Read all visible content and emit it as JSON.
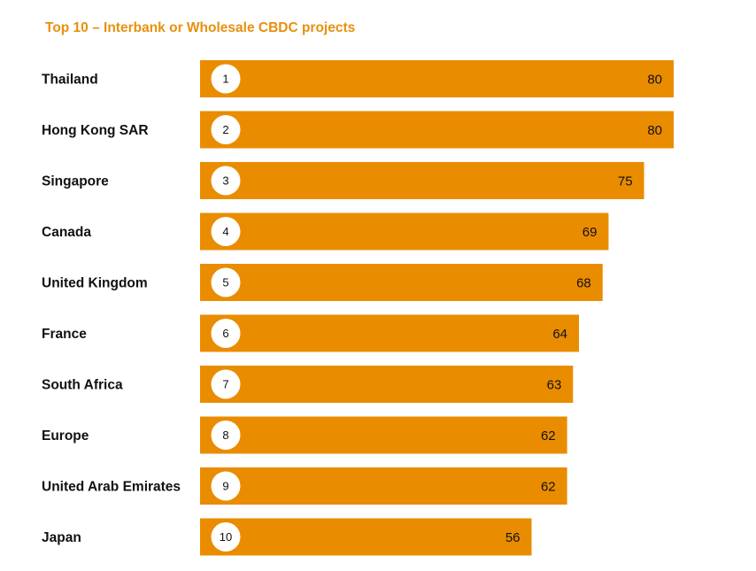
{
  "chart_data": {
    "type": "bar",
    "orientation": "horizontal",
    "title": "Top 10 – Interbank or Wholesale CBDC projects",
    "categories": [
      "Thailand",
      "Hong Kong SAR",
      "Singapore",
      "Canada",
      "United Kingdom",
      "France",
      "South Africa",
      "Europe",
      "United Arab Emirates",
      "Japan"
    ],
    "ranks": [
      "1",
      "2",
      "3",
      "4",
      "5",
      "6",
      "7",
      "8",
      "9",
      "10"
    ],
    "values": [
      80,
      80,
      75,
      69,
      68,
      64,
      63,
      62,
      62,
      56
    ],
    "xlim": [
      0,
      80
    ],
    "grid": false,
    "legend": "none",
    "colors": {
      "bar": "#EA8C00",
      "title": "#E8900C",
      "rank_circle": "#FFFFFF",
      "text": "#111111"
    }
  }
}
